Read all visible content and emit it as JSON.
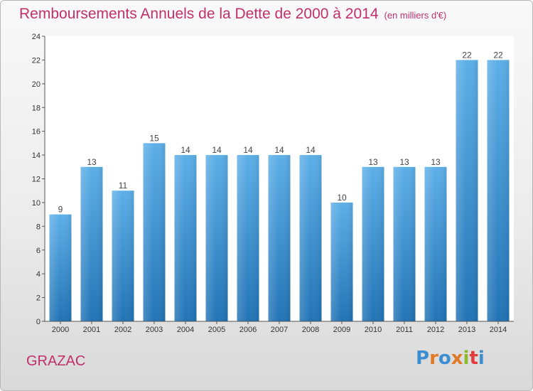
{
  "header": {
    "title": "Remboursements Annuels de la Dette de 2000 à 2014",
    "unit": "(en milliers d'€)"
  },
  "footer": {
    "town": "GRAZAC",
    "logo": "Proxiti"
  },
  "colors": {
    "title": "#c0306b",
    "bar_top": "#5dafe8",
    "bar_bottom": "#2173b5",
    "logo_letters": [
      "#3d8ed0",
      "#e07a24",
      "#3d8ed0",
      "#e07a24",
      "#8bbb2d",
      "#e03a3a",
      "#3d8ed0"
    ]
  },
  "chart_data": {
    "type": "bar",
    "categories": [
      "2000",
      "2001",
      "2002",
      "2003",
      "2004",
      "2005",
      "2006",
      "2007",
      "2008",
      "2009",
      "2010",
      "2011",
      "2012",
      "2013",
      "2014"
    ],
    "values": [
      9,
      13,
      11,
      15,
      14,
      14,
      14,
      14,
      14,
      10,
      13,
      13,
      13,
      22,
      22
    ],
    "ylim": [
      0,
      24
    ],
    "yticks": [
      0,
      2,
      4,
      6,
      8,
      10,
      12,
      14,
      16,
      18,
      20,
      22,
      24
    ],
    "grid": false,
    "data_labels": true
  }
}
